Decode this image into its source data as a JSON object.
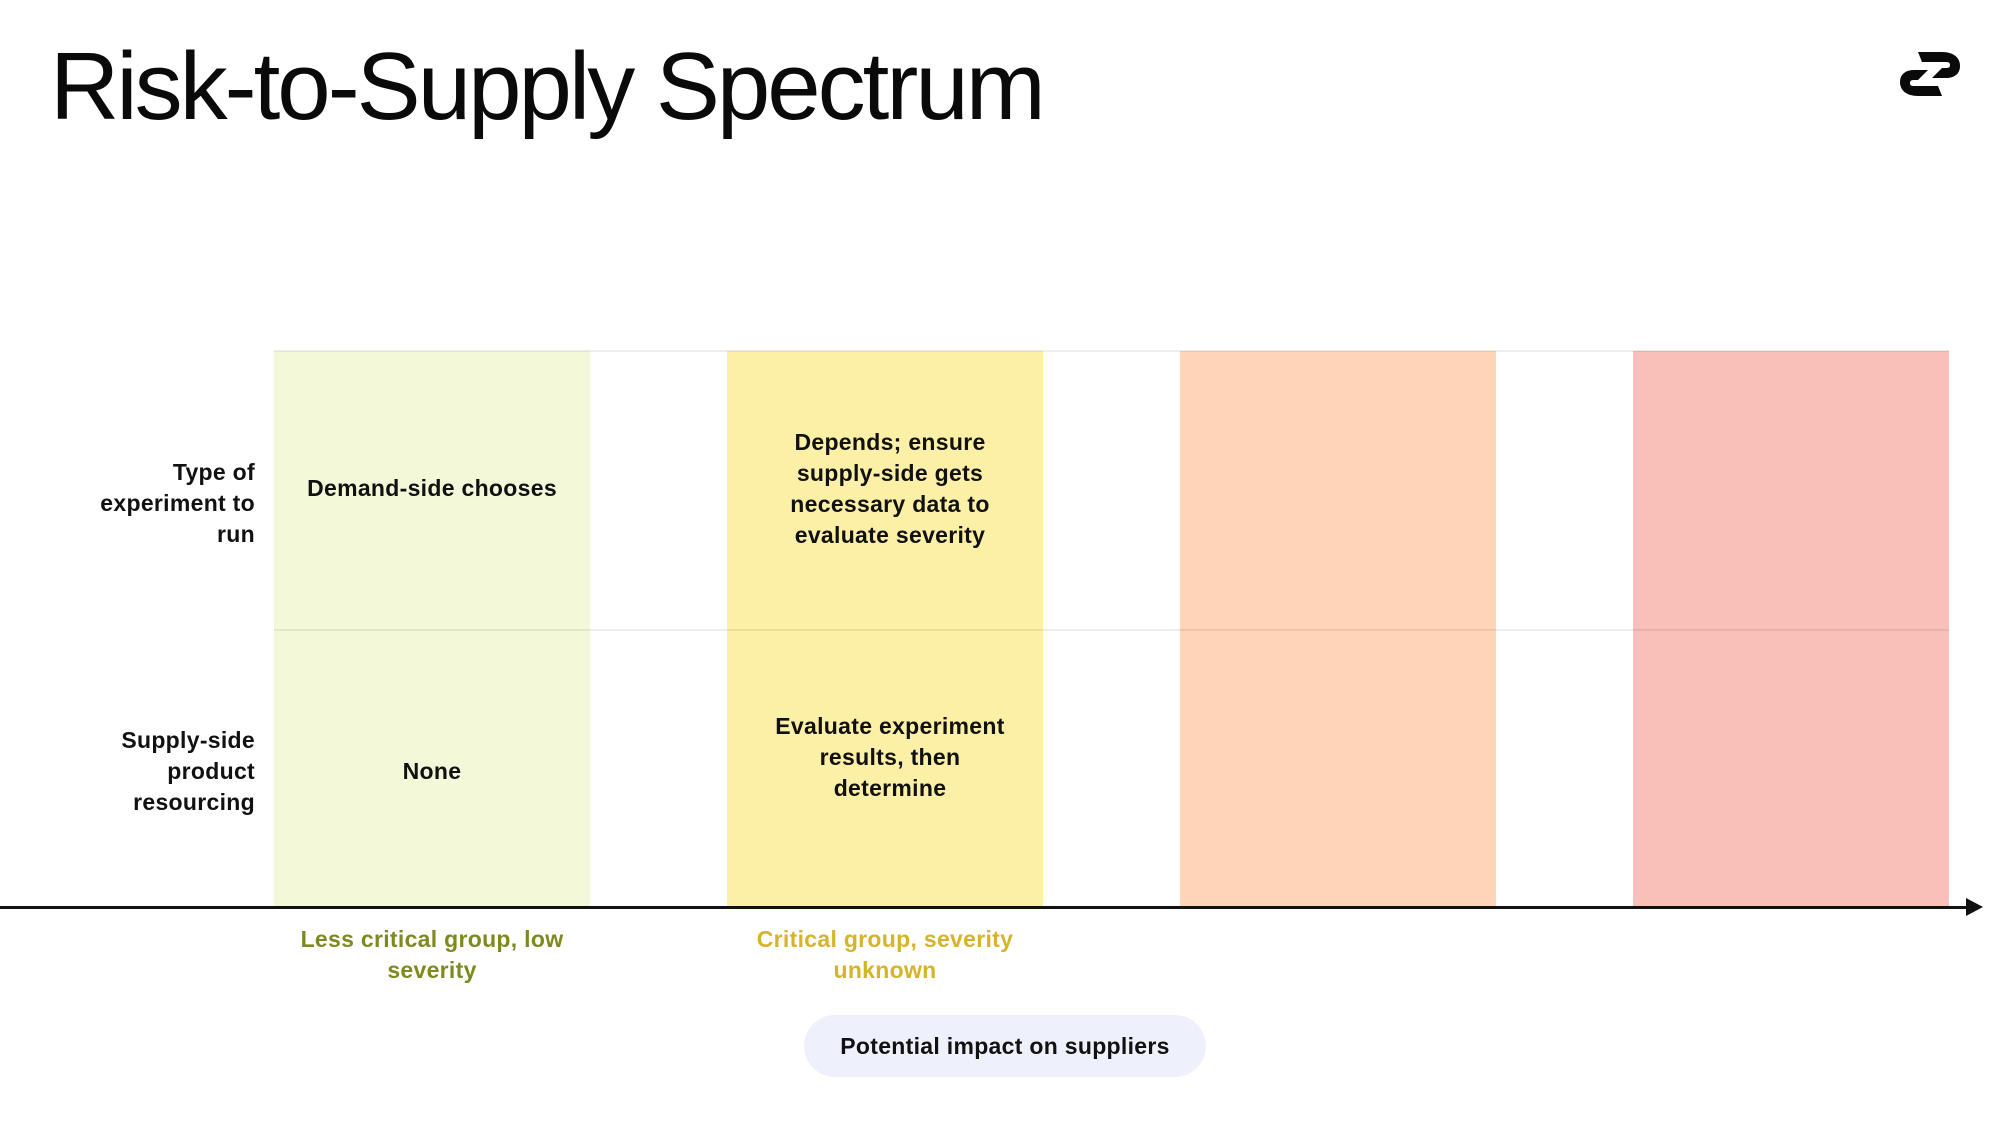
{
  "header": {
    "title": "Risk-to-Supply Spectrum",
    "logo_icon": "brand-logo-icon"
  },
  "rows": [
    {
      "label": "Type of experiment to run"
    },
    {
      "label": "Supply-side product resourcing"
    }
  ],
  "columns": [
    {
      "color": "#f3f8d9",
      "cells": [
        "Demand-side chooses",
        "None"
      ],
      "axis_label": "Less critical group, low severity",
      "axis_label_color": "#7e8a1f"
    },
    {
      "color": "#fcefa6",
      "cells": [
        "Depends; ensure supply-side gets necessary data to evaluate severity",
        "Evaluate experiment results, then determine"
      ],
      "axis_label": "Critical group, severity unknown",
      "axis_label_color": "#d6b42a"
    },
    {
      "color": "#ffd4b9",
      "cells": [
        "",
        ""
      ],
      "axis_label": ""
    },
    {
      "color": "#f8c0b9",
      "cells": [
        "",
        ""
      ],
      "axis_label": ""
    }
  ],
  "axis": {
    "title": "Potential impact on suppliers"
  }
}
